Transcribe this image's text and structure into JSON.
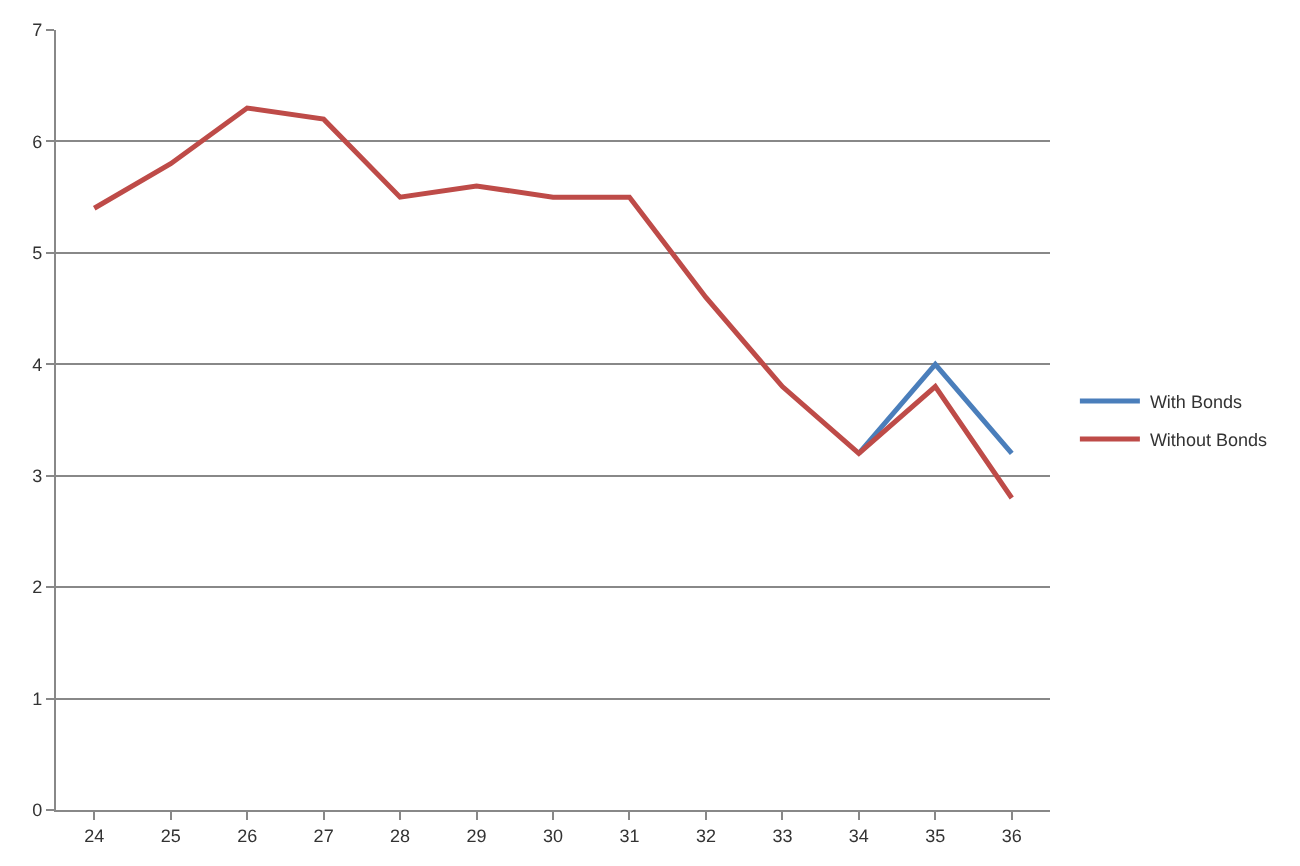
{
  "chart_data": {
    "type": "line",
    "categories": [
      "24",
      "25",
      "26",
      "27",
      "28",
      "29",
      "30",
      "31",
      "32",
      "33",
      "34",
      "35",
      "36"
    ],
    "series": [
      {
        "name": "With Bonds",
        "color": "#4a7ebb",
        "values": [
          null,
          null,
          null,
          null,
          null,
          null,
          null,
          null,
          null,
          null,
          3.2,
          4.0,
          3.2
        ]
      },
      {
        "name": "Without Bonds",
        "color": "#be4b48",
        "values": [
          5.4,
          5.8,
          6.3,
          6.2,
          5.5,
          5.6,
          5.5,
          5.5,
          4.6,
          3.8,
          3.2,
          3.8,
          2.8
        ]
      }
    ],
    "ylim": [
      0,
      7
    ],
    "yticks": [
      0,
      1,
      2,
      3,
      4,
      5,
      6,
      7
    ],
    "grid": "y",
    "legend": "right",
    "marker": "none",
    "line_style": "solid"
  }
}
